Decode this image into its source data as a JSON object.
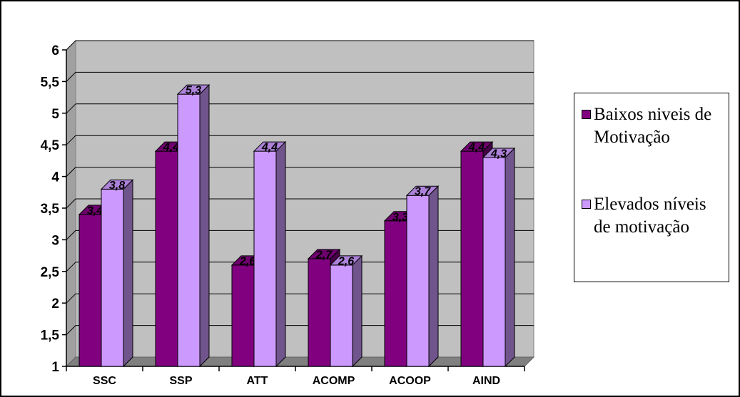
{
  "chart_data": {
    "type": "bar",
    "style": "3d-clustered-column",
    "categories": [
      "SSC",
      "SSP",
      "ATT",
      "ACOMP",
      "ACOOP",
      "AIND"
    ],
    "series": [
      {
        "name": "Baixos niveis de Motivação",
        "values": [
          3.4,
          4.4,
          2.6,
          2.7,
          3.3,
          4.4
        ],
        "data_labels": [
          "3,4",
          "4,4",
          "2,6",
          "2,7",
          "3,3",
          "4,4"
        ],
        "color": "#800080"
      },
      {
        "name": "Elevados níveis de motivação",
        "values": [
          3.8,
          5.3,
          4.4,
          2.6,
          3.7,
          4.3
        ],
        "data_labels": [
          "3,8",
          "5,3",
          "4,4",
          "2,6",
          "3,7",
          "4,3"
        ],
        "color": "#cc99ff"
      }
    ],
    "ylim": [
      1,
      6
    ],
    "ytick_labels": [
      "1",
      "1,5",
      "2",
      "2,5",
      "3",
      "3,5",
      "4",
      "4,5",
      "5",
      "5,5",
      "6"
    ],
    "grid": true,
    "wall_color": "#c0c0c0",
    "legend_position": "right",
    "title": "",
    "xlabel": "",
    "ylabel": ""
  }
}
